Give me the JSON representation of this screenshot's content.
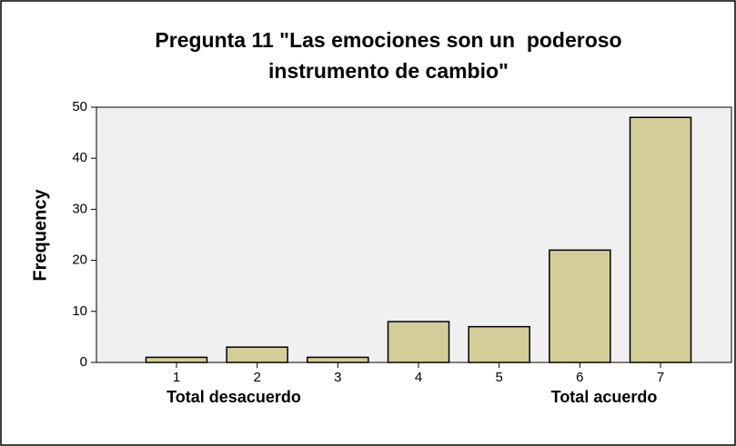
{
  "chart_data": {
    "type": "bar",
    "title": [
      "Pregunta 11 \"Las emociones son un  poderoso",
      "instrumento de cambio\""
    ],
    "ylabel": "Frequency",
    "annotations": [
      "Total desacuerdo",
      "Total acuerdo"
    ],
    "categories": [
      "1",
      "2",
      "3",
      "4",
      "5",
      "6",
      "7"
    ],
    "values": [
      1,
      3,
      1,
      8,
      7,
      22,
      48
    ],
    "color": "#d3cd98",
    "ylim": [
      0,
      50
    ],
    "yticks": [
      0,
      10,
      20,
      30,
      40,
      50
    ],
    "grid": false
  }
}
